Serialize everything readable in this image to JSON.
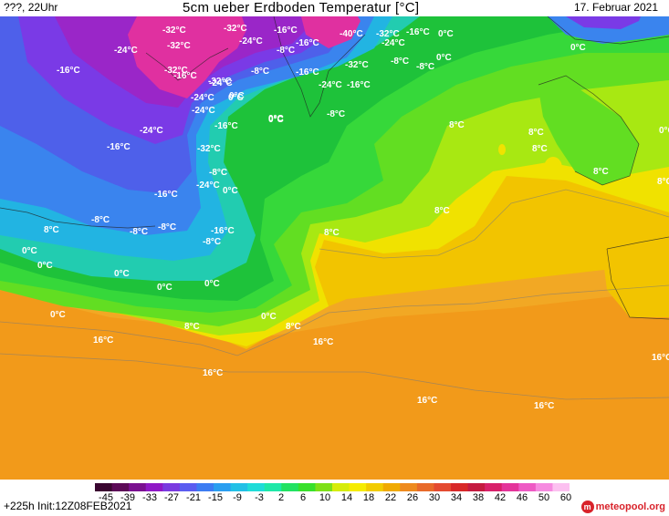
{
  "header": {
    "left": "???, 22Uhr",
    "title": "5cm ueber Erdboden Temperatur [°C]",
    "date": "17. Februar 2021"
  },
  "footer": {
    "run": "+225h  Init:12Z08FEB2021",
    "brand": "meteopool.org",
    "brand_icon": "m-logo-icon"
  },
  "legend": {
    "ticks": [
      "-45",
      "-39",
      "-33",
      "-27",
      "-21",
      "-15",
      "-9",
      "-3",
      "2",
      "6",
      "10",
      "14",
      "18",
      "22",
      "26",
      "30",
      "34",
      "38",
      "42",
      "46",
      "50",
      "60"
    ],
    "colors": [
      "#3a0630",
      "#5c0a57",
      "#7a1090",
      "#8f18c6",
      "#7a3ae0",
      "#5a5cf0",
      "#3c7cf2",
      "#2a9ef0",
      "#22c0e6",
      "#1fdcd8",
      "#1ee8a8",
      "#22e262",
      "#38e02c",
      "#7ee018",
      "#d6ec0a",
      "#f6ec00",
      "#f2cc00",
      "#f0aa00",
      "#ee8a1e",
      "#e86a2a",
      "#e44a30",
      "#d82828",
      "#c41a40",
      "#d8206a",
      "#e4349a",
      "#ee5ac4",
      "#f68ae0",
      "#fcc0f0"
    ]
  },
  "map": {
    "labels": [
      "-32°C",
      "-32°C",
      "-16°C",
      "-40°C",
      "-32°C",
      "-16°C",
      "0°C",
      "-24°C",
      "-32°C",
      "-24°C",
      "-8°C",
      "-16°C",
      "-24°C",
      "-16°C",
      "-24°C",
      "0°C",
      "-8°C",
      "0°C",
      "-16°C",
      "-32°C",
      "-8°C",
      "-32°C",
      "-16°C",
      "-32°C",
      "-24°C",
      "-16°C",
      "-8°C",
      "0°C",
      "0°C",
      "-24°C",
      "-24°C",
      "-24°C",
      "-16°C",
      "0°C",
      "8°C",
      "8°C",
      "0°C",
      "-8°C",
      "-16°C",
      "-32°C",
      "8°C",
      "-8°C",
      "-24°C",
      "0°C",
      "8°C",
      "-16°C",
      "8°C",
      "-8°C",
      "-8°C",
      "-8°C",
      "-16°C",
      "-8°C",
      "8°C",
      "0°C",
      "0°C",
      "0°C",
      "0°C",
      "0°C",
      "0°C",
      "8°C",
      "0°C",
      "8°C",
      "8°C",
      "16°C",
      "16°C",
      "16°C",
      "16°C",
      "16°C",
      "16°C",
      "8°C",
      "0°C"
    ],
    "colors": {
      "orange": "#f29a1a",
      "orange_light": "#f2a824",
      "yellow_orange": "#f2c400",
      "yellow": "#f0e200",
      "lime": "#a8e812",
      "green_light": "#62de22",
      "green": "#36d83a",
      "green_dark": "#1ec23a",
      "teal": "#22ccb0",
      "cyan": "#22b4e2",
      "blue": "#3a84ee",
      "blue_dark": "#4e60ea",
      "violet": "#7a3ae6",
      "purple": "#9a26c8",
      "magenta": "#e030a0",
      "pink": "#f070c8"
    }
  }
}
